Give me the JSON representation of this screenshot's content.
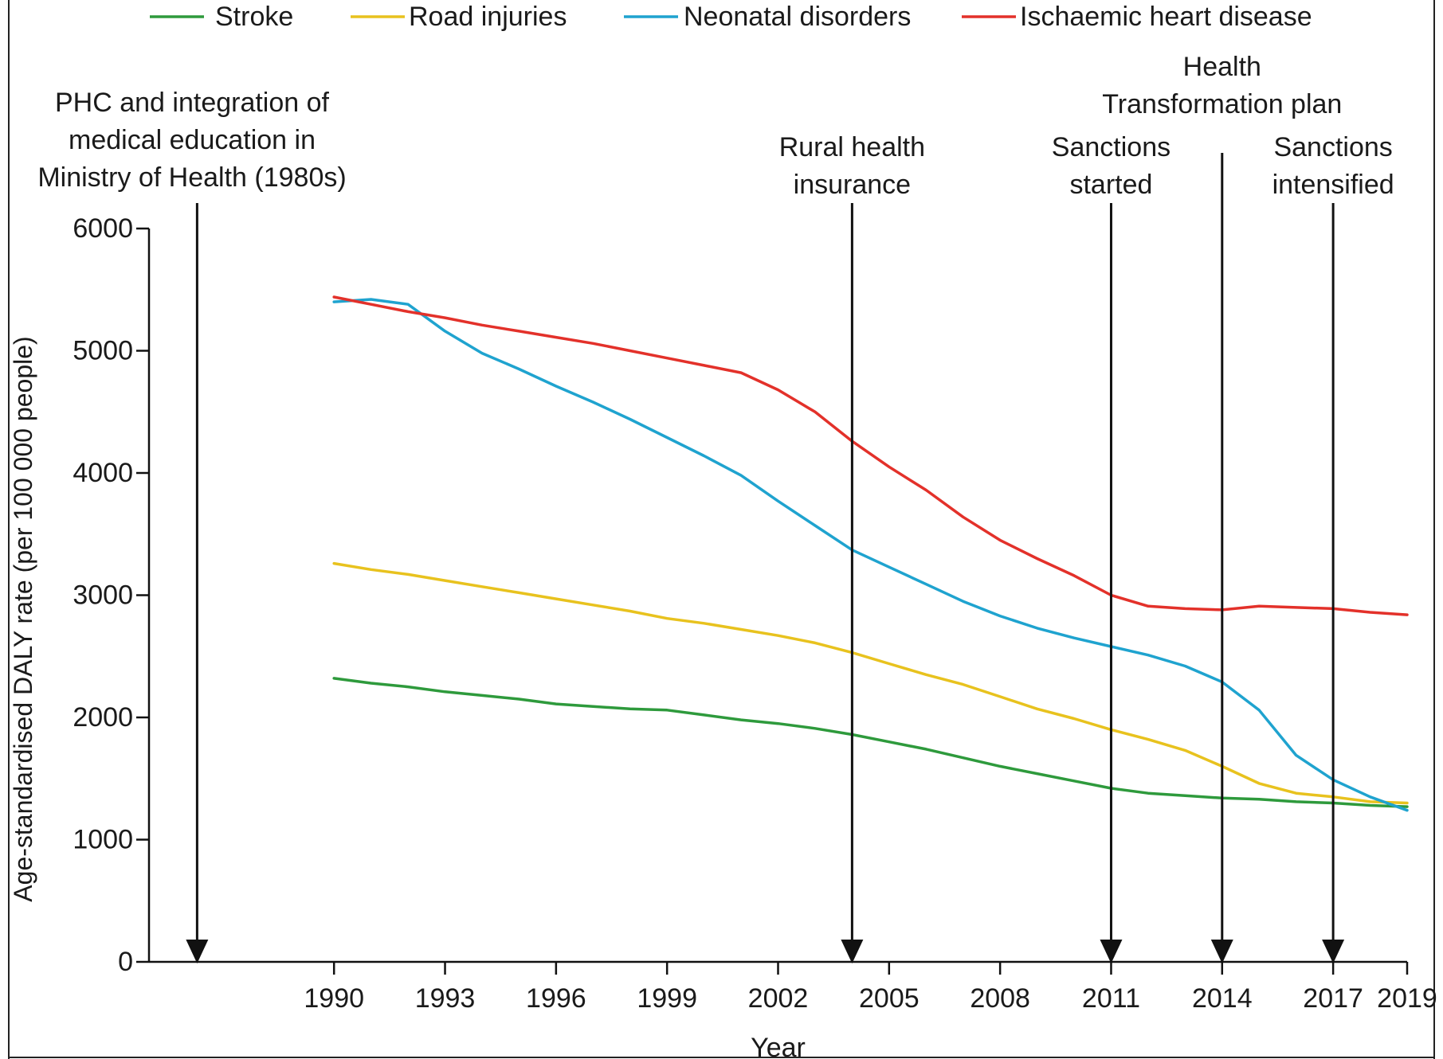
{
  "chart_data": {
    "type": "line",
    "title": "",
    "xlabel": "Year",
    "ylabel": "Age-standardised DALY rate (per 100 000 people)",
    "ylim": [
      0,
      6000
    ],
    "xlim": [
      1985,
      2019
    ],
    "yticks": [
      0,
      1000,
      2000,
      3000,
      4000,
      5000,
      6000
    ],
    "xticks": [
      1990,
      1993,
      1996,
      1999,
      2002,
      2005,
      2008,
      2011,
      2014,
      2017,
      2019
    ],
    "grid": false,
    "legend_position": "top",
    "x": [
      1990,
      1991,
      1992,
      1993,
      1994,
      1995,
      1996,
      1997,
      1998,
      1999,
      2000,
      2001,
      2002,
      2003,
      2004,
      2005,
      2006,
      2007,
      2008,
      2009,
      2010,
      2011,
      2012,
      2013,
      2014,
      2015,
      2016,
      2017,
      2018,
      2019
    ],
    "series": [
      {
        "name": "Stroke",
        "color": "#2e9a3c",
        "values": [
          2320,
          2280,
          2250,
          2210,
          2180,
          2150,
          2110,
          2090,
          2070,
          2060,
          2020,
          1980,
          1950,
          1910,
          1860,
          1800,
          1740,
          1670,
          1600,
          1540,
          1480,
          1420,
          1380,
          1360,
          1340,
          1330,
          1310,
          1300,
          1280,
          1270
        ]
      },
      {
        "name": "Road injuries",
        "color": "#e8c21e",
        "values": [
          3260,
          3210,
          3170,
          3120,
          3070,
          3020,
          2970,
          2920,
          2870,
          2810,
          2770,
          2720,
          2670,
          2610,
          2530,
          2440,
          2350,
          2270,
          2170,
          2070,
          1990,
          1900,
          1820,
          1730,
          1600,
          1460,
          1380,
          1350,
          1310,
          1300
        ]
      },
      {
        "name": "Neonatal disorders",
        "color": "#1fa3cf",
        "values": [
          5400,
          5420,
          5380,
          5160,
          4980,
          4850,
          4710,
          4580,
          4440,
          4290,
          4140,
          3980,
          3770,
          3570,
          3370,
          3230,
          3090,
          2950,
          2830,
          2730,
          2650,
          2580,
          2510,
          2420,
          2290,
          2060,
          1690,
          1490,
          1350,
          1240
        ]
      },
      {
        "name": "Ischaemic heart disease",
        "color": "#e3312a",
        "values": [
          5440,
          5380,
          5320,
          5270,
          5210,
          5160,
          5110,
          5060,
          5000,
          4940,
          4880,
          4820,
          4680,
          4500,
          4260,
          4050,
          3860,
          3640,
          3450,
          3300,
          3160,
          3000,
          2910,
          2890,
          2880,
          2910,
          2900,
          2890,
          2860,
          2840
        ]
      }
    ],
    "annotations": [
      {
        "lines": [
          "PHC and integration of",
          "medical education in",
          "Ministry of Health (1980s)"
        ],
        "x": 1986.3
      },
      {
        "lines": [
          "Rural health",
          "insurance"
        ],
        "x": 2004
      },
      {
        "lines": [
          "Sanctions",
          "started"
        ],
        "x": 2011
      },
      {
        "lines": [
          "Health",
          "Transformation plan"
        ],
        "x": 2014
      },
      {
        "lines": [
          "Sanctions",
          "intensified"
        ],
        "x": 2017
      }
    ]
  }
}
